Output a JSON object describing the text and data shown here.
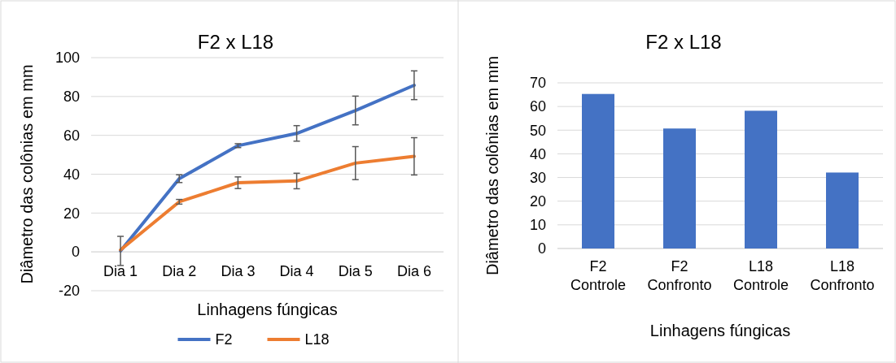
{
  "chart_data": [
    {
      "type": "line",
      "title": "F2 x L18",
      "xlabel": "Linhagens fúngicas",
      "ylabel": "Diâmetro das colônias em mm",
      "categories": [
        "Dia 1",
        "Dia 2",
        "Dia 3",
        "Dia 4",
        "Dia 5",
        "Dia 6"
      ],
      "series": [
        {
          "name": "F2",
          "color": "#4472c4",
          "values": [
            0.5,
            37.7,
            54.7,
            61,
            72.8,
            85.8
          ],
          "errors": [
            7.5,
            2,
            1,
            4,
            7.4,
            7.4
          ]
        },
        {
          "name": "L18",
          "color": "#ed7d31",
          "values": [
            1,
            25.8,
            35.6,
            36.5,
            45.7,
            49.2
          ],
          "errors": [
            null,
            1.2,
            3,
            4,
            8.5,
            9.6
          ]
        }
      ],
      "ylim": [
        -20,
        100
      ],
      "yticks": [
        -20,
        0,
        20,
        40,
        60,
        80,
        100
      ],
      "grid": "y",
      "legend": "bottom",
      "marker": "none"
    },
    {
      "type": "bar",
      "title": "F2 x L18",
      "xlabel": "Linhagens fúngicas",
      "ylabel": "Diâmetro das colônias em mm",
      "categories": [
        "F2 Controle",
        "F2 Confronto",
        "L18 Controle",
        "L18 Confronto"
      ],
      "values": [
        65.3,
        50.7,
        58.2,
        32.1
      ],
      "color": "#4472c4",
      "ylim": [
        0,
        70
      ],
      "yticks": [
        0,
        10,
        20,
        30,
        40,
        50,
        60,
        70
      ],
      "grid": "y"
    }
  ]
}
